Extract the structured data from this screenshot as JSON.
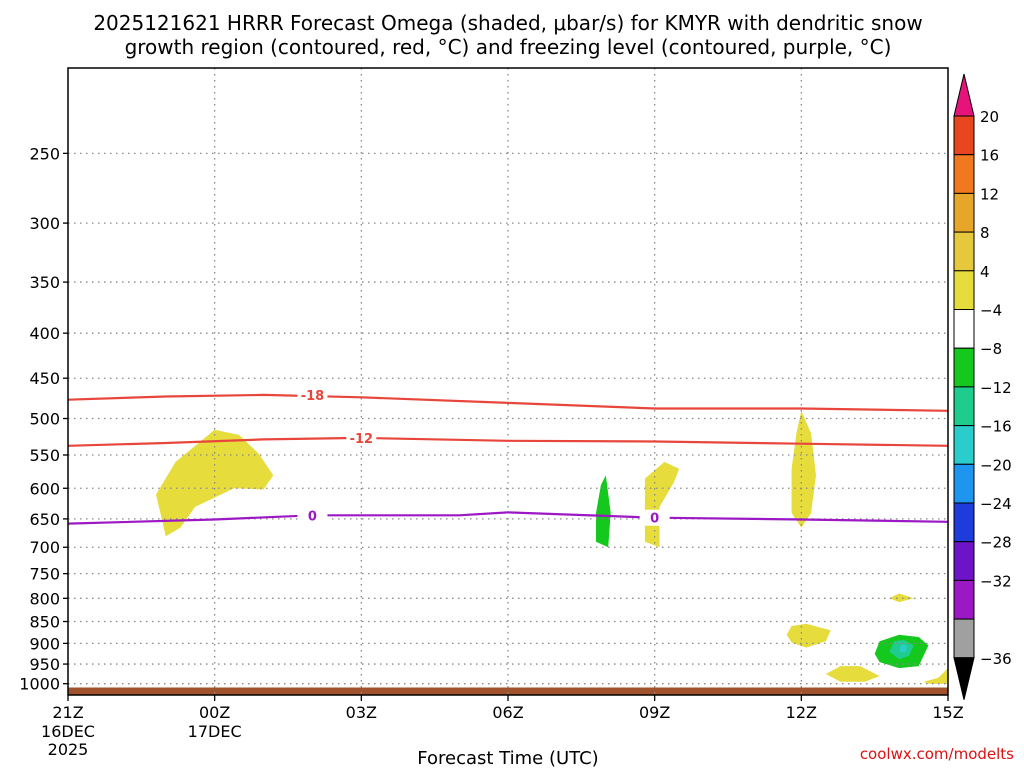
{
  "title_line1": "2025121621 HRRR Forecast Omega (shaded, μbar/s) for KMYR with dendritic snow",
  "title_line2": "growth region (contoured, red, °C) and freezing level (contoured, purple, °C)",
  "credit": "coolwx.com/modelts",
  "chart_data": {
    "type": "heatmap",
    "xlabel": "Forecast Time (UTC)",
    "ylabel": "",
    "x_unit": "hours since 21Z 16DEC 2025",
    "xlim": [
      0,
      18
    ],
    "ylim": [
      1000,
      200
    ],
    "y_ticks": [
      250,
      300,
      350,
      400,
      450,
      500,
      550,
      600,
      650,
      700,
      750,
      800,
      850,
      900,
      950,
      1000
    ],
    "x_ticks": [
      {
        "x": 0,
        "label": "21Z",
        "label2": "16DEC",
        "label3": "2025"
      },
      {
        "x": 3,
        "label": "00Z",
        "label2": "17DEC",
        "label3": ""
      },
      {
        "x": 6,
        "label": "03Z",
        "label2": "",
        "label3": ""
      },
      {
        "x": 9,
        "label": "06Z",
        "label2": "",
        "label3": ""
      },
      {
        "x": 12,
        "label": "09Z",
        "label2": "",
        "label3": ""
      },
      {
        "x": 15,
        "label": "12Z",
        "label2": "",
        "label3": ""
      },
      {
        "x": 18,
        "label": "15Z",
        "label2": "",
        "label3": ""
      }
    ],
    "grid": true,
    "contours": [
      {
        "name": "-18",
        "color": "#e8463b",
        "label_at": [
          5.0,
          470
        ],
        "points": [
          [
            0,
            476
          ],
          [
            2,
            472
          ],
          [
            4,
            470
          ],
          [
            6,
            473
          ],
          [
            9,
            480
          ],
          [
            12,
            487
          ],
          [
            15,
            487
          ],
          [
            18,
            490
          ]
        ]
      },
      {
        "name": "-12",
        "color": "#e8463b",
        "label_at": [
          6.0,
          526
        ],
        "points": [
          [
            0,
            537
          ],
          [
            2,
            533
          ],
          [
            4,
            528
          ],
          [
            6,
            526
          ],
          [
            9,
            530
          ],
          [
            12,
            531
          ],
          [
            15,
            534
          ],
          [
            18,
            537
          ]
        ]
      },
      {
        "name": "0",
        "color": "#9b18c4",
        "label_at": [
          5.0,
          644
        ],
        "points": [
          [
            0,
            658
          ],
          [
            3,
            651
          ],
          [
            5,
            644
          ],
          [
            8,
            644
          ],
          [
            9,
            639
          ],
          [
            12,
            648
          ],
          [
            15,
            651
          ],
          [
            18,
            655
          ]
        ]
      },
      {
        "name": "0",
        "color": "#9b18c4",
        "label_at": [
          12.0,
          648
        ],
        "points": []
      }
    ],
    "shaded_regions": [
      {
        "color": "#e6dc3c",
        "points": [
          [
            2.0,
            680
          ],
          [
            1.8,
            610
          ],
          [
            2.2,
            560
          ],
          [
            3.0,
            515
          ],
          [
            3.5,
            522
          ],
          [
            3.9,
            548
          ],
          [
            4.2,
            580
          ],
          [
            4.0,
            602
          ],
          [
            3.4,
            600
          ],
          [
            2.6,
            630
          ],
          [
            2.3,
            665
          ]
        ]
      },
      {
        "color": "#e6dc3c",
        "points": [
          [
            11.8,
            690
          ],
          [
            11.8,
            640
          ],
          [
            11.8,
            585
          ],
          [
            12.2,
            560
          ],
          [
            12.5,
            570
          ],
          [
            12.4,
            590
          ],
          [
            12.1,
            630
          ],
          [
            12.1,
            700
          ]
        ]
      },
      {
        "color": "#e6dc3c",
        "points": [
          [
            14.8,
            640
          ],
          [
            14.8,
            570
          ],
          [
            14.9,
            520
          ],
          [
            15.0,
            490
          ],
          [
            15.2,
            520
          ],
          [
            15.3,
            580
          ],
          [
            15.2,
            640
          ],
          [
            15.0,
            665
          ]
        ]
      },
      {
        "color": "#e6dc3c",
        "points": [
          [
            14.7,
            880
          ],
          [
            14.8,
            860
          ],
          [
            15.1,
            855
          ],
          [
            15.6,
            870
          ],
          [
            15.5,
            895
          ],
          [
            15.1,
            910
          ],
          [
            14.8,
            898
          ]
        ]
      },
      {
        "color": "#e6dc3c",
        "points": [
          [
            15.5,
            975
          ],
          [
            15.8,
            955
          ],
          [
            16.2,
            955
          ],
          [
            16.6,
            980
          ],
          [
            16.3,
            995
          ],
          [
            15.8,
            995
          ]
        ]
      },
      {
        "color": "#e6dc3c",
        "points": [
          [
            16.8,
            800
          ],
          [
            17.0,
            790
          ],
          [
            17.3,
            800
          ],
          [
            17.0,
            808
          ]
        ]
      },
      {
        "color": "#e6dc3c",
        "points": [
          [
            17.5,
            995
          ],
          [
            17.8,
            985
          ],
          [
            18.0,
            960
          ],
          [
            18.0,
            1000
          ],
          [
            17.6,
            1000
          ]
        ]
      },
      {
        "color": "#14c81e",
        "points": [
          [
            10.8,
            690
          ],
          [
            10.8,
            640
          ],
          [
            10.9,
            595
          ],
          [
            11.0,
            580
          ],
          [
            11.1,
            640
          ],
          [
            11.05,
            700
          ]
        ]
      },
      {
        "color": "#14c81e",
        "points": [
          [
            16.5,
            925
          ],
          [
            16.6,
            895
          ],
          [
            17.0,
            880
          ],
          [
            17.4,
            885
          ],
          [
            17.6,
            905
          ],
          [
            17.4,
            955
          ],
          [
            17.0,
            960
          ],
          [
            16.6,
            945
          ]
        ]
      },
      {
        "color": "#1ecc8e",
        "points": [
          [
            16.8,
            920
          ],
          [
            16.9,
            895
          ],
          [
            17.1,
            892
          ],
          [
            17.3,
            905
          ],
          [
            17.2,
            930
          ],
          [
            17.0,
            938
          ]
        ]
      },
      {
        "color": "#2acccc",
        "points": [
          [
            17.0,
            915
          ],
          [
            17.05,
            902
          ],
          [
            17.15,
            903
          ],
          [
            17.15,
            918
          ],
          [
            17.05,
            922
          ]
        ]
      }
    ],
    "ground_band": {
      "color": "#a0522d",
      "from": 1010,
      "to": 1030
    },
    "colorbar": {
      "levels": [
        "20",
        "16",
        "12",
        "8",
        "4",
        "−4",
        "−8",
        "−12",
        "−16",
        "−20",
        "−24",
        "−28",
        "−32",
        "−36"
      ],
      "colors": [
        "#e8461e",
        "#f0781e",
        "#e6a62a",
        "#e6c83c",
        "#e6dc3c",
        "#ffffff",
        "#14c81e",
        "#1ecc8e",
        "#2acccc",
        "#1e96f0",
        "#1e3cdc",
        "#6e14c8",
        "#9b18c4",
        "#a0a0a0"
      ],
      "top_arrow_color": "#e6147a",
      "bottom_arrow_color": "#000000"
    }
  }
}
